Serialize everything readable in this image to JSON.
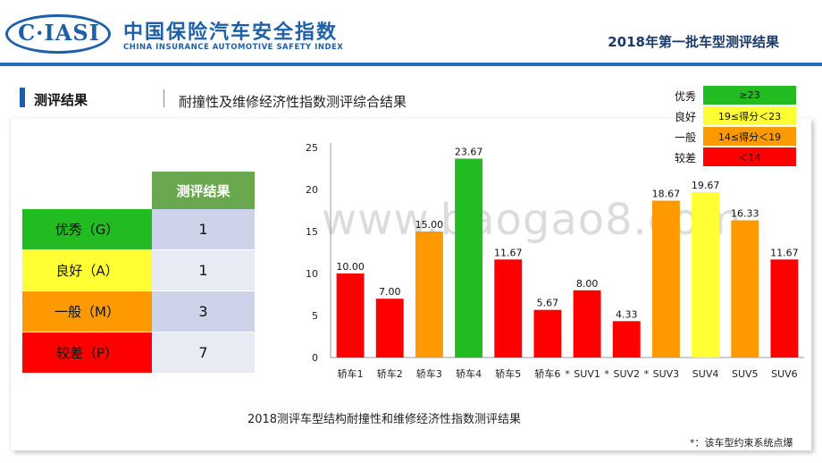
{
  "header": {
    "logo_text": "C·IASI",
    "brand_cn": "中国保险汽车安全指数",
    "brand_en": "CHINA INSURANCE AUTOMOTIVE SAFETY INDEX",
    "doc_title": "2018年第一批车型测评结果"
  },
  "section": {
    "label": "测评结果",
    "title": "耐撞性及维修经济性指数测评综合结果"
  },
  "results_table": {
    "header": "测评结果",
    "rows": [
      {
        "category": "优秀（G）",
        "value": "1",
        "color": "#22bb22"
      },
      {
        "category": "良好（A）",
        "value": "1",
        "color": "#ffff33"
      },
      {
        "category": "一般（M）",
        "value": "3",
        "color": "#ff9900"
      },
      {
        "category": "较差（P）",
        "value": "7",
        "color": "#ff0000"
      }
    ]
  },
  "legend": [
    {
      "name": "优秀",
      "range": "≥23",
      "color": "#22bb22"
    },
    {
      "name": "良好",
      "range": "19≤得分＜23",
      "color": "#ffff33"
    },
    {
      "name": "一般",
      "range": "14≤得分＜19",
      "color": "#ff9900"
    },
    {
      "name": "较差",
      "range": "＜14",
      "color": "#ff0000"
    }
  ],
  "chart_data": {
    "type": "bar",
    "categories": [
      "轿车1",
      "轿车2",
      "轿车3",
      "轿车4",
      "轿车5",
      "轿车6",
      "SUV1",
      "SUV2",
      "SUV3",
      "SUV4",
      "SUV5",
      "SUV6"
    ],
    "category_markers": [
      "",
      "",
      "",
      "",
      "",
      "*",
      "*",
      "*",
      "",
      "",
      "",
      ""
    ],
    "values": [
      10.0,
      7.0,
      15.0,
      23.67,
      11.67,
      5.67,
      8.0,
      4.33,
      18.67,
      19.67,
      16.33,
      11.67
    ],
    "value_labels": [
      "10.00",
      "7.00",
      "15.00",
      "23.67",
      "11.67",
      "5.67",
      "8.00",
      "4.33",
      "18.67",
      "19.67",
      "16.33",
      "11.67"
    ],
    "colors": [
      "#ff0000",
      "#ff0000",
      "#ff9900",
      "#22bb22",
      "#ff0000",
      "#ff0000",
      "#ff0000",
      "#ff0000",
      "#ff9900",
      "#ffff33",
      "#ff9900",
      "#ff0000"
    ],
    "ylim": [
      0,
      25
    ],
    "yticks": [
      0,
      5,
      10,
      15,
      20,
      25
    ],
    "grid": false,
    "title": "2018测评车型结构耐撞性和维修经济性指数测评结果"
  },
  "footnote": "*：该车型约束系统点爆",
  "watermark": "www.baogao8.com"
}
